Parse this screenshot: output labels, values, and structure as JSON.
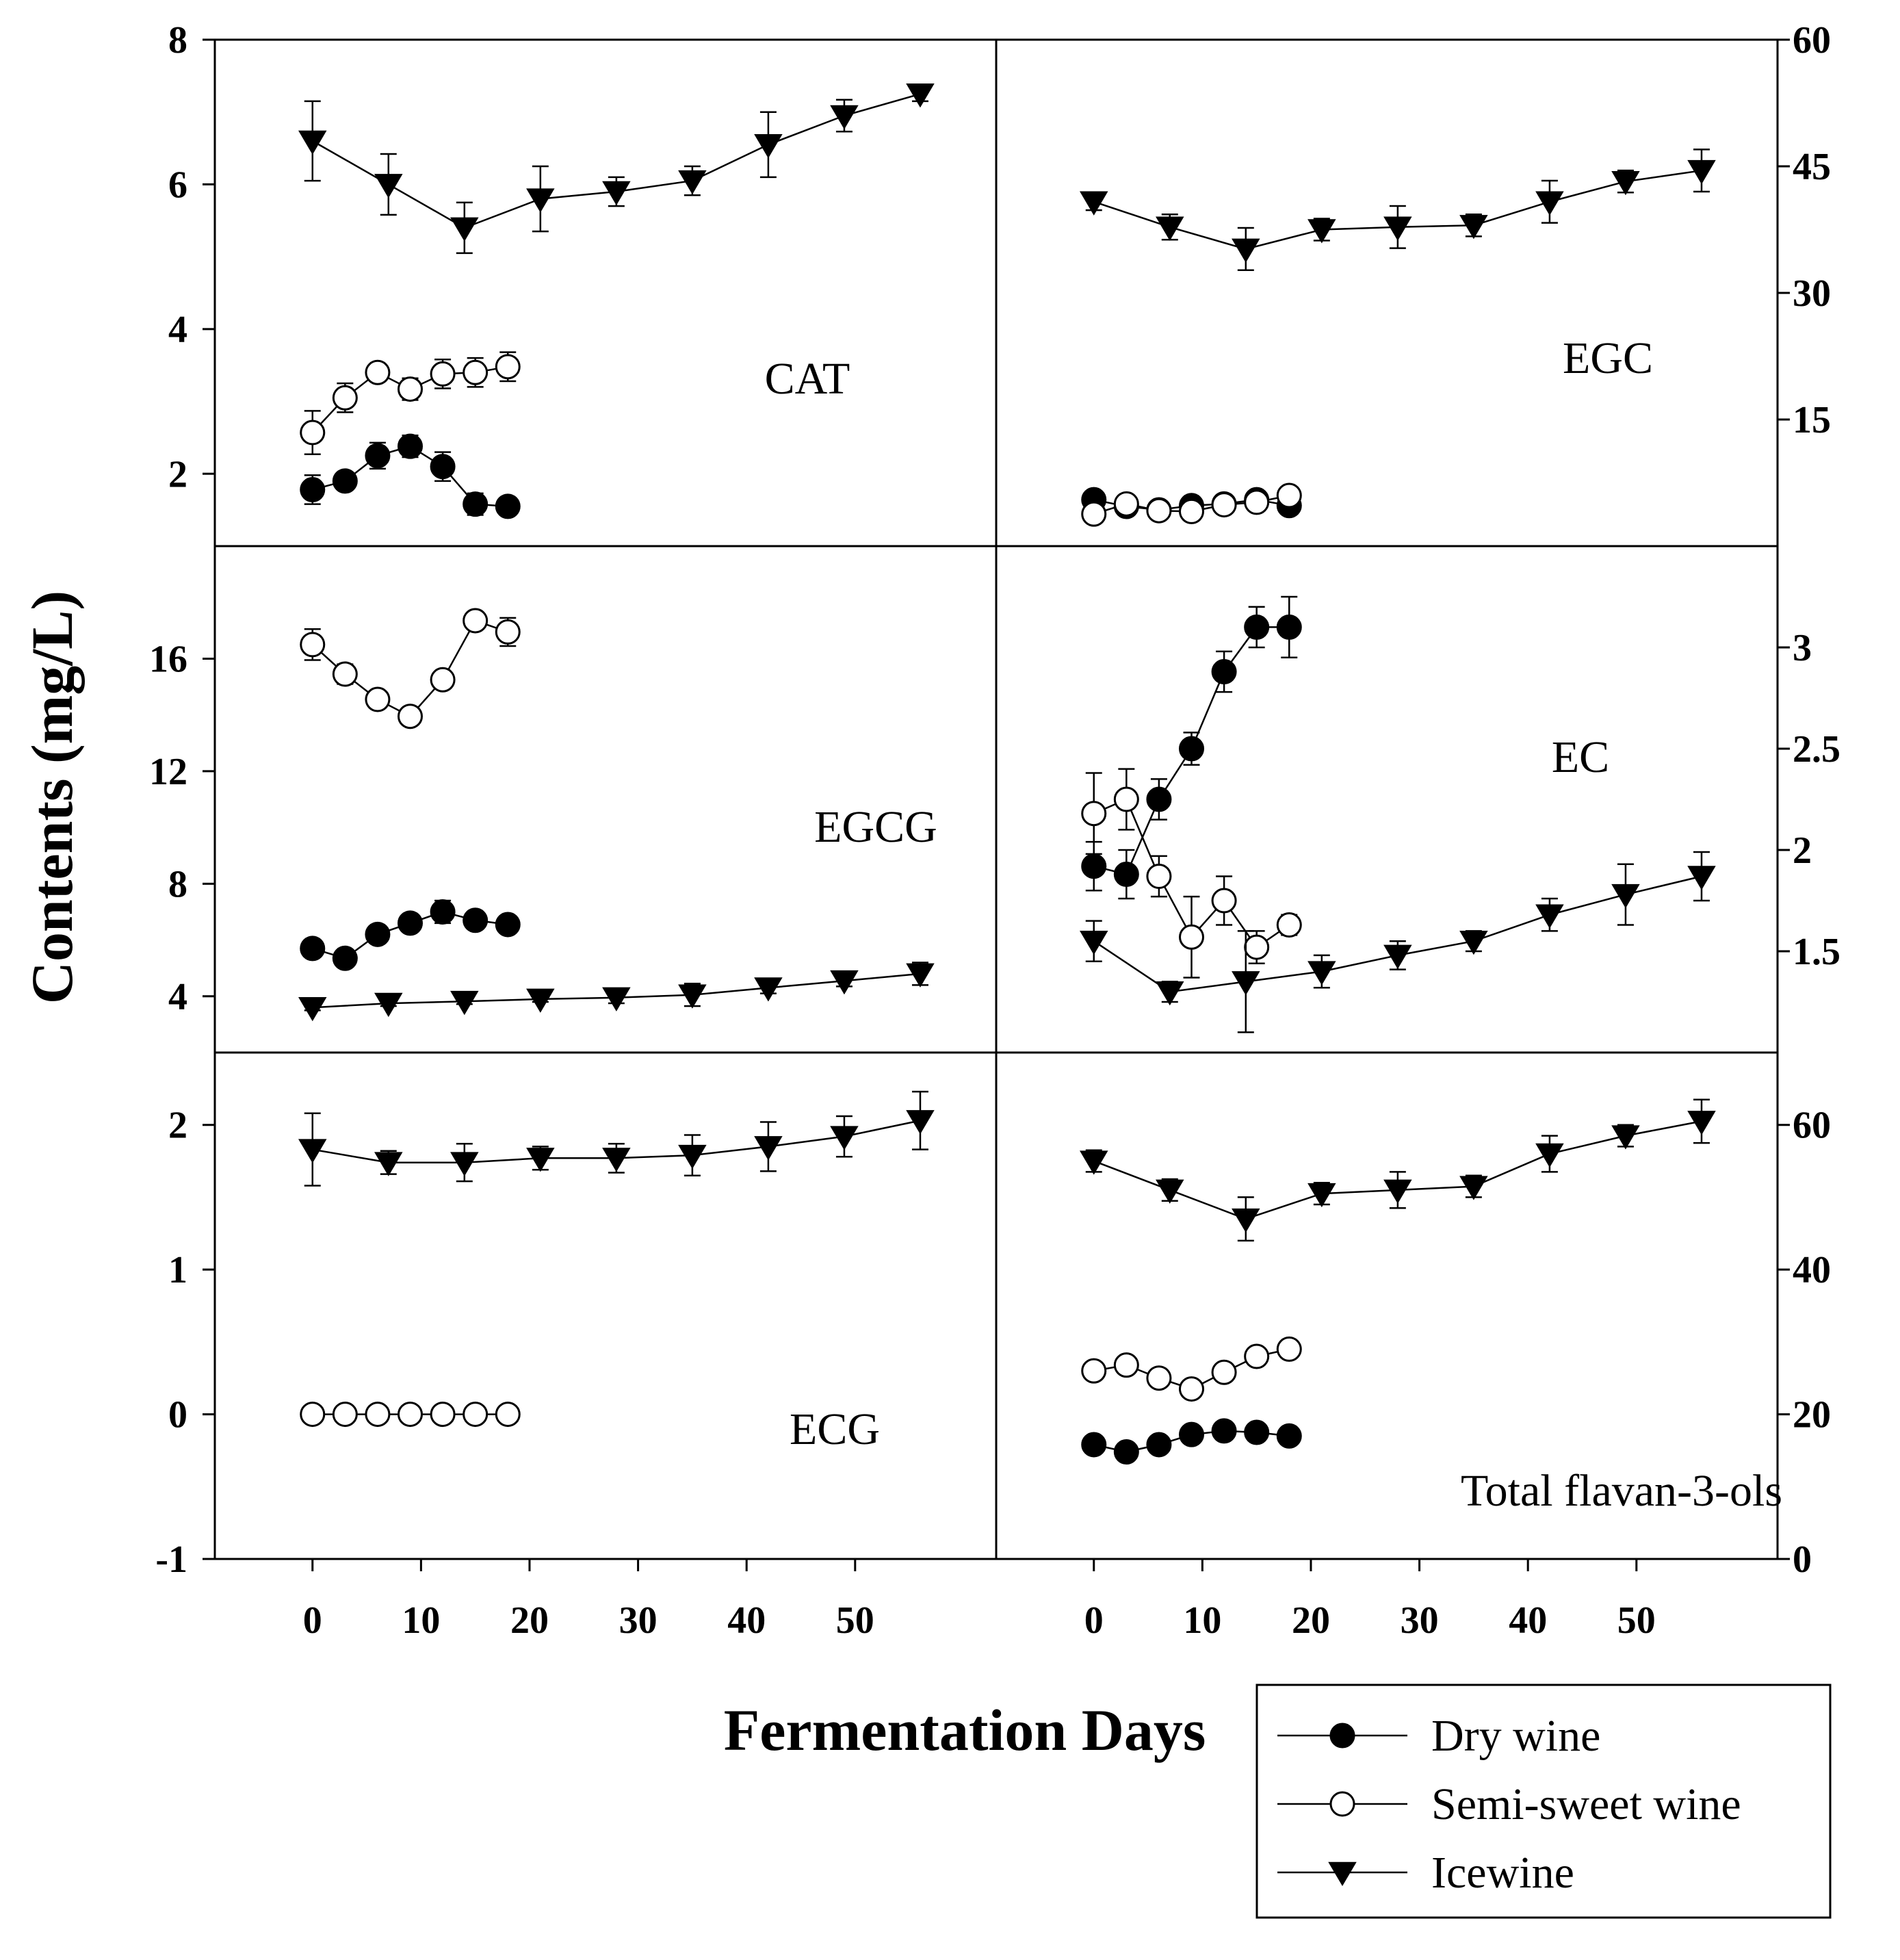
{
  "chart_data": {
    "type": "line",
    "ylabel": "Contents (mg/L)",
    "xlabel": "Fermentation Days",
    "legend": {
      "placement": "bottom-right",
      "entries": [
        {
          "name": "Dry wine",
          "marker": "filled-circle"
        },
        {
          "name": "Semi-sweet wine",
          "marker": "open-circle"
        },
        {
          "name": "Icewine",
          "marker": "filled-triangle-down"
        }
      ]
    },
    "x_ticks": [
      0,
      10,
      20,
      30,
      40,
      50
    ],
    "xlim": [
      -9,
      63
    ],
    "panels": [
      {
        "label": "CAT",
        "row": 0,
        "col": 0,
        "axis_side": "left",
        "ylim": [
          1,
          8
        ],
        "y_ticks": [
          2,
          4,
          6,
          8
        ],
        "series": [
          {
            "name": "Dry wine",
            "marker": "filled-circle",
            "x": [
              0,
              3,
              6,
              9,
              12,
              15,
              18
            ],
            "y": [
              1.78,
              1.9,
              2.25,
              2.38,
              2.1,
              1.58,
              1.55
            ],
            "err": [
              0.2,
              0.12,
              0.18,
              0.15,
              0.2,
              0.15,
              0.08
            ]
          },
          {
            "name": "Semi-sweet wine",
            "marker": "open-circle",
            "x": [
              0,
              3,
              6,
              9,
              12,
              15,
              18
            ],
            "y": [
              2.57,
              3.05,
              3.4,
              3.17,
              3.38,
              3.4,
              3.48
            ],
            "err": [
              0.3,
              0.2,
              0.12,
              0.15,
              0.2,
              0.2,
              0.2
            ]
          },
          {
            "name": "Icewine",
            "marker": "filled-triangle-down",
            "x": [
              0,
              7,
              14,
              21,
              28,
              35,
              42,
              49,
              56
            ],
            "y": [
              6.6,
              6.0,
              5.4,
              5.8,
              5.9,
              6.05,
              6.55,
              6.95,
              7.25
            ],
            "err": [
              0.55,
              0.42,
              0.35,
              0.45,
              0.2,
              0.2,
              0.45,
              0.22,
              0.1
            ]
          }
        ]
      },
      {
        "label": "EGC",
        "row": 0,
        "col": 1,
        "axis_side": "right",
        "ylim": [
          0,
          60
        ],
        "y_ticks": [
          15,
          30,
          45,
          60
        ],
        "series": [
          {
            "name": "Dry wine",
            "marker": "filled-circle",
            "x": [
              0,
              3,
              6,
              9,
              12,
              15,
              18
            ],
            "y": [
              5.5,
              4.7,
              4.3,
              4.8,
              5.0,
              5.5,
              4.8
            ],
            "err": [
              0.5,
              0.5,
              0.5,
              0.5,
              0.5,
              0.5,
              0.5
            ]
          },
          {
            "name": "Semi-sweet wine",
            "marker": "open-circle",
            "x": [
              0,
              3,
              6,
              9,
              12,
              15,
              18
            ],
            "y": [
              3.8,
              5.0,
              4.2,
              4.1,
              4.9,
              5.2,
              6.0
            ],
            "err": [
              0.5,
              0.5,
              0.5,
              0.5,
              0.5,
              0.5,
              0.5
            ]
          },
          {
            "name": "Icewine",
            "marker": "filled-triangle-down",
            "x": [
              0,
              7,
              14,
              21,
              28,
              35,
              42,
              49,
              56
            ],
            "y": [
              40.8,
              37.8,
              35.2,
              37.5,
              37.8,
              38.0,
              40.8,
              43.2,
              44.5
            ],
            "err": [
              1.0,
              1.5,
              2.5,
              1.3,
              2.5,
              1.3,
              2.5,
              1.3,
              2.5
            ]
          }
        ]
      },
      {
        "label": "EGCG",
        "row": 1,
        "col": 0,
        "axis_side": "left",
        "ylim": [
          2,
          20
        ],
        "y_ticks": [
          4,
          8,
          12,
          16
        ],
        "series": [
          {
            "name": "Dry wine",
            "marker": "filled-circle",
            "x": [
              0,
              3,
              6,
              9,
              12,
              15,
              18
            ],
            "y": [
              5.7,
              5.35,
              6.2,
              6.6,
              7.0,
              6.7,
              6.55
            ],
            "err": [
              0.2,
              0.2,
              0.2,
              0.25,
              0.4,
              0.25,
              0.2
            ]
          },
          {
            "name": "Semi-sweet wine",
            "marker": "open-circle",
            "x": [
              0,
              3,
              6,
              9,
              12,
              15,
              18
            ],
            "y": [
              16.5,
              15.45,
              14.55,
              13.95,
              15.25,
              17.35,
              16.95
            ],
            "err": [
              0.55,
              0.35,
              0.3,
              0.3,
              0.3,
              0.3,
              0.5
            ]
          },
          {
            "name": "Icewine",
            "marker": "filled-triangle-down",
            "x": [
              0,
              7,
              14,
              21,
              28,
              35,
              42,
              49,
              56
            ],
            "y": [
              3.6,
              3.75,
              3.82,
              3.9,
              3.95,
              4.05,
              4.3,
              4.55,
              4.8
            ],
            "err": [
              0.1,
              0.1,
              0.1,
              0.1,
              0.2,
              0.4,
              0.2,
              0.2,
              0.4
            ]
          }
        ]
      },
      {
        "label": "EC",
        "row": 1,
        "col": 1,
        "axis_side": "right",
        "ylim": [
          1.0,
          3.5
        ],
        "y_ticks": [
          1.5,
          2.0,
          2.5,
          3.0
        ],
        "series": [
          {
            "name": "Dry wine",
            "marker": "filled-circle",
            "x": [
              0,
              3,
              6,
              9,
              12,
              15,
              18
            ],
            "y": [
              1.92,
              1.88,
              2.25,
              2.5,
              2.88,
              3.1,
              3.1
            ],
            "err": [
              0.12,
              0.12,
              0.1,
              0.08,
              0.1,
              0.1,
              0.15
            ]
          },
          {
            "name": "Semi-sweet wine",
            "marker": "open-circle",
            "x": [
              0,
              3,
              6,
              9,
              12,
              15,
              18
            ],
            "y": [
              2.18,
              2.25,
              1.87,
              1.57,
              1.75,
              1.52,
              1.63
            ],
            "err": [
              0.2,
              0.15,
              0.1,
              0.2,
              0.12,
              0.08,
              0.05
            ]
          },
          {
            "name": "Icewine",
            "marker": "filled-triangle-down",
            "x": [
              0,
              7,
              14,
              21,
              28,
              35,
              42,
              49,
              56
            ],
            "y": [
              1.55,
              1.3,
              1.35,
              1.4,
              1.48,
              1.55,
              1.68,
              1.78,
              1.87
            ],
            "err": [
              0.1,
              0.05,
              0.25,
              0.08,
              0.07,
              0.05,
              0.08,
              0.15,
              0.12
            ]
          }
        ]
      },
      {
        "label": "ECG",
        "row": 2,
        "col": 0,
        "axis_side": "left",
        "ylim": [
          -1,
          2.5
        ],
        "y_ticks": [
          -1,
          0,
          1,
          2
        ],
        "series": [
          {
            "name": "Semi-sweet wine",
            "marker": "open-circle",
            "x": [
              0,
              3,
              6,
              9,
              12,
              15,
              18
            ],
            "y": [
              0,
              0,
              0,
              0,
              0,
              0,
              0
            ],
            "err": [
              0,
              0,
              0,
              0,
              0,
              0,
              0
            ]
          },
          {
            "name": "Icewine",
            "marker": "filled-triangle-down",
            "x": [
              0,
              7,
              14,
              21,
              28,
              35,
              42,
              49,
              56
            ],
            "y": [
              1.83,
              1.74,
              1.74,
              1.77,
              1.77,
              1.79,
              1.85,
              1.92,
              2.03
            ],
            "err": [
              0.25,
              0.08,
              0.13,
              0.08,
              0.1,
              0.14,
              0.17,
              0.14,
              0.2
            ]
          }
        ]
      },
      {
        "label": "Total flavan-3-ols",
        "row": 2,
        "col": 1,
        "axis_side": "right",
        "ylim": [
          0,
          70
        ],
        "y_ticks": [
          0,
          20,
          40,
          60
        ],
        "series": [
          {
            "name": "Dry wine",
            "marker": "filled-circle",
            "x": [
              0,
              3,
              6,
              9,
              12,
              15,
              18
            ],
            "y": [
              15.8,
              14.8,
              15.8,
              17.2,
              17.7,
              17.5,
              17.0
            ],
            "err": [
              0,
              0,
              0,
              0,
              0,
              0,
              0
            ]
          },
          {
            "name": "Semi-sweet wine",
            "marker": "open-circle",
            "x": [
              0,
              3,
              6,
              9,
              12,
              15,
              18
            ],
            "y": [
              26.0,
              26.8,
              25.0,
              23.5,
              25.8,
              28.0,
              29.0
            ],
            "err": [
              0,
              0,
              0,
              0,
              0,
              0,
              0
            ]
          },
          {
            "name": "Icewine",
            "marker": "filled-triangle-down",
            "x": [
              0,
              7,
              14,
              21,
              28,
              35,
              42,
              49,
              56
            ],
            "y": [
              55.0,
              51.0,
              47.0,
              50.5,
              51.0,
              51.5,
              56.0,
              58.5,
              60.5
            ],
            "err": [
              1.5,
              1.5,
              3.0,
              1.5,
              2.5,
              1.5,
              2.5,
              1.5,
              3.0
            ]
          }
        ]
      }
    ]
  }
}
